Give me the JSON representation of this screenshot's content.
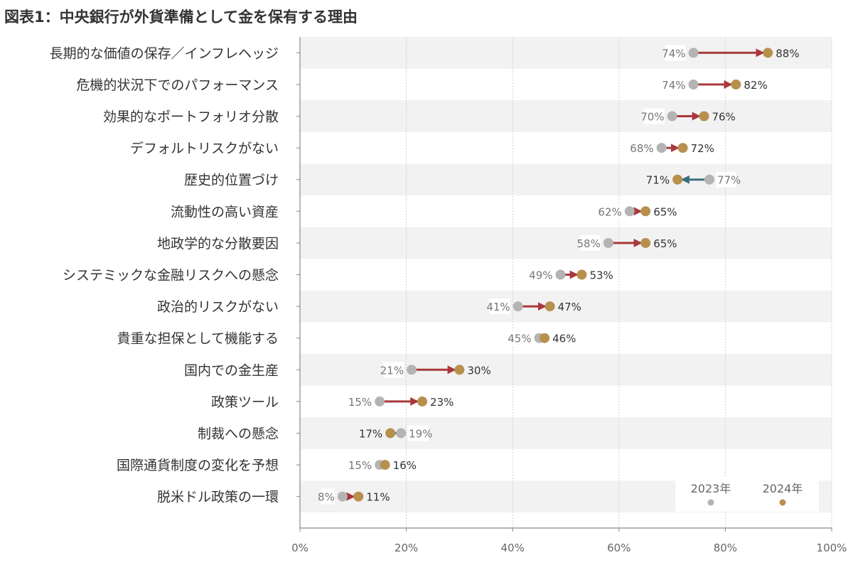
{
  "chart_data": {
    "type": "dumbbell",
    "title": "図表1：中央銀行が外貨準備として金を保有する理由",
    "categories": [
      "長期的な価値の保存／インフレヘッジ",
      "危機的状況下でのパフォーマンス",
      "効果的なポートフォリオ分散",
      "デフォルトリスクがない",
      "歴史的位置づけ",
      "流動性の高い資産",
      "地政学的な分散要因",
      "システミックな金融リスクへの懸念",
      "政治的リスクがない",
      "貴重な担保として機能する",
      "国内での金生産",
      "政策ツール",
      "制裁への懸念",
      "国際通貨制度の変化を予想",
      "脱米ドル政策の一環"
    ],
    "series": [
      {
        "name": "2023年",
        "color": "#b4b4b4",
        "values": [
          74,
          74,
          70,
          68,
          77,
          62,
          58,
          49,
          41,
          45,
          21,
          15,
          19,
          15,
          8
        ]
      },
      {
        "name": "2024年",
        "color": "#b8904e",
        "values": [
          88,
          82,
          76,
          72,
          71,
          65,
          65,
          53,
          47,
          46,
          30,
          23,
          17,
          16,
          11
        ]
      }
    ],
    "value_labels_2023": [
      "74%",
      "74%",
      "70%",
      "68%",
      "77%",
      "62%",
      "58%",
      "49%",
      "41%",
      "45%",
      "21%",
      "15%",
      "19%",
      "15%",
      "8%"
    ],
    "value_labels_2024": [
      "88%",
      "82%",
      "76%",
      "72%",
      "71%",
      "65%",
      "65%",
      "53%",
      "47%",
      "46%",
      "30%",
      "23%",
      "17%",
      "16%",
      "11%"
    ],
    "xlim": [
      0,
      100
    ],
    "x_ticks": [
      "0%",
      "20%",
      "40%",
      "60%",
      "80%",
      "100%"
    ],
    "grid": "vertical dotted",
    "legend_placement": "bottom-right",
    "arrow_colors": {
      "increase": "#a8383c",
      "decrease": "#3a6f7a"
    },
    "band_color": "#f2f2f2"
  }
}
